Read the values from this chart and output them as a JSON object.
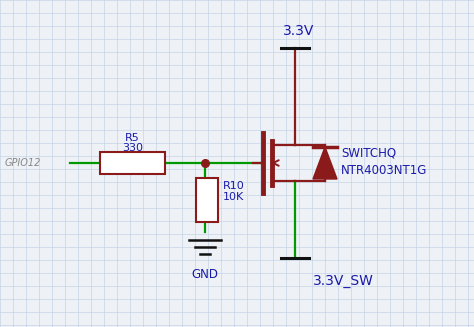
{
  "bg_color": "#eef2f7",
  "grid_color": "#c5d5e5",
  "wire_green": "#009900",
  "wire_dark": "#111111",
  "comp_color": "#8b1a1a",
  "label_blue": "#1a1aaa",
  "label_gray": "#888888",
  "vdd_label": "3.3V",
  "vsw_label": "3.3V_SW",
  "gnd_label": "GND",
  "gpio_label": "GPIO12",
  "r5_label1": "R5",
  "r5_label2": "330",
  "r10_label1": "R10",
  "r10_label2": "10K",
  "mosfet_label1": "SWITCHQ",
  "mosfet_label2": "NTR4003NT1G",
  "figw": 4.74,
  "figh": 3.27,
  "dpi": 100
}
